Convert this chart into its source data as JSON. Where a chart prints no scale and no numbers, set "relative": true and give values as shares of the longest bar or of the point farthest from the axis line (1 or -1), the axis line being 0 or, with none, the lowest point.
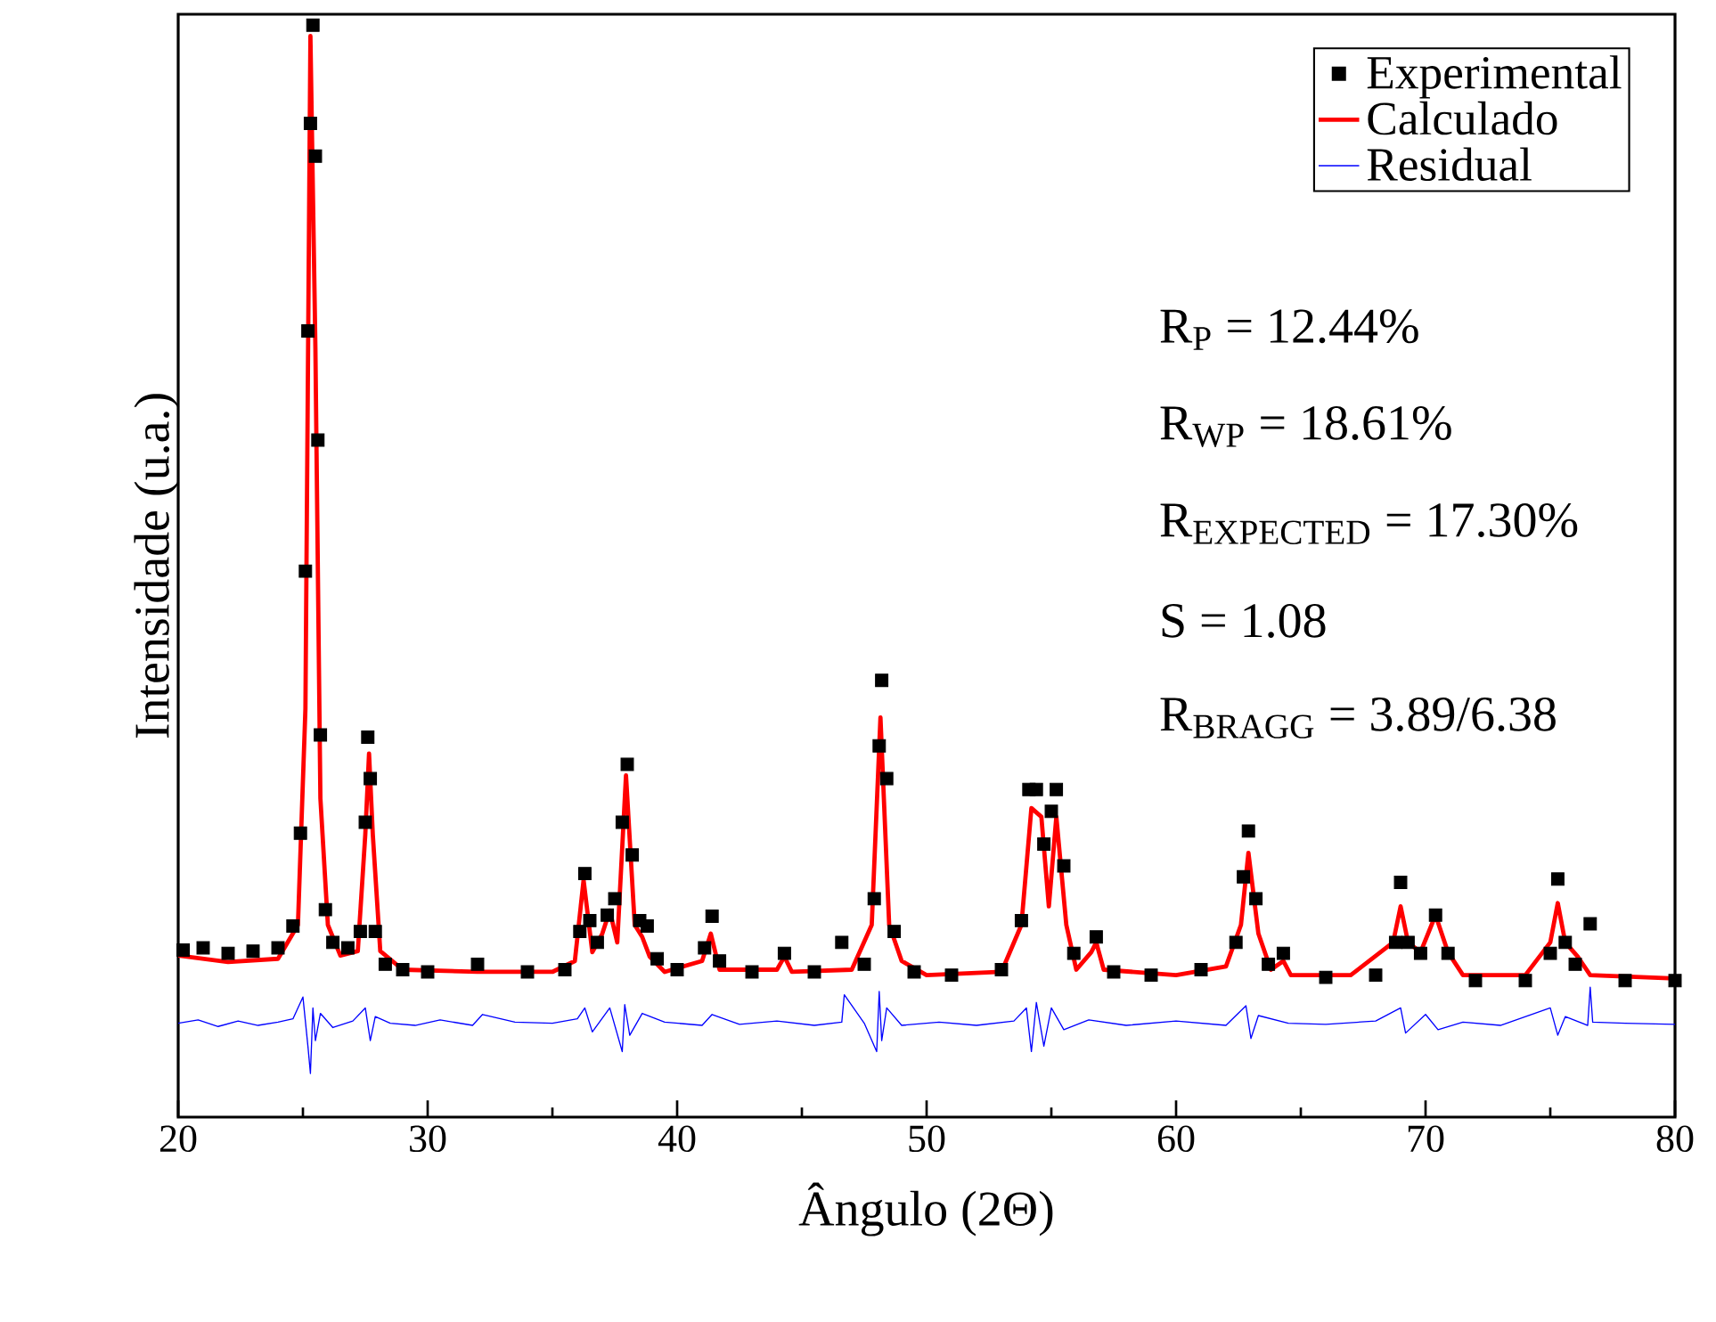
{
  "chart_data": {
    "type": "line",
    "relative": true,
    "xlabel": "Ângulo (2Θ)",
    "ylabel": "Intensidade (u.a.)",
    "xlim": [
      20,
      80
    ],
    "xticks": [
      20,
      30,
      40,
      50,
      60,
      70,
      80
    ],
    "legend": "top right",
    "annotations": [
      "R$_{P}$ = 12.44%",
      "R$_{WP}$ = 18.61%",
      "R$_{EXPECTED}$ = 17.30%",
      "S = 1.08",
      "R$_{BRAGG}$ = 3.89/6.38"
    ],
    "series": [
      {
        "name": "Experimental",
        "type": "scatter",
        "marker": "square",
        "color": "#000000",
        "x": [
          20.2,
          21,
          22,
          23,
          24,
          24.6,
          24.9,
          25.1,
          25.2,
          25.3,
          25.4,
          25.5,
          25.6,
          25.7,
          25.9,
          26.2,
          26.8,
          27.3,
          27.5,
          27.6,
          27.7,
          27.9,
          28.3,
          29,
          30,
          32,
          34,
          35.5,
          36.1,
          36.3,
          36.5,
          36.8,
          37.2,
          37.5,
          37.8,
          38.0,
          38.2,
          38.5,
          38.8,
          39.2,
          40,
          41.1,
          41.4,
          41.7,
          43,
          44.3,
          45.5,
          46.6,
          47.5,
          47.9,
          48.1,
          48.2,
          48.4,
          48.7,
          49.5,
          51,
          53,
          53.8,
          54.1,
          54.4,
          54.7,
          55.0,
          55.2,
          55.5,
          55.9,
          56.8,
          57.5,
          59,
          61,
          62.4,
          62.7,
          62.9,
          63.2,
          63.7,
          64.3,
          66,
          68,
          68.8,
          69.0,
          69.3,
          69.8,
          70.4,
          70.9,
          72,
          74,
          75.0,
          75.3,
          75.6,
          76.0,
          76.6,
          78,
          80
        ],
        "values": [
          0.153,
          0.155,
          0.15,
          0.152,
          0.155,
          0.175,
          0.26,
          0.5,
          0.72,
          0.91,
          1.0,
          0.88,
          0.62,
          0.35,
          0.19,
          0.16,
          0.155,
          0.17,
          0.27,
          0.348,
          0.31,
          0.17,
          0.14,
          0.135,
          0.133,
          0.14,
          0.133,
          0.135,
          0.17,
          0.223,
          0.18,
          0.16,
          0.185,
          0.2,
          0.27,
          0.323,
          0.24,
          0.18,
          0.175,
          0.145,
          0.135,
          0.155,
          0.184,
          0.143,
          0.133,
          0.15,
          0.133,
          0.16,
          0.14,
          0.2,
          0.34,
          0.4,
          0.31,
          0.17,
          0.133,
          0.13,
          0.135,
          0.18,
          0.3,
          0.3,
          0.25,
          0.28,
          0.3,
          0.23,
          0.15,
          0.165,
          0.133,
          0.13,
          0.135,
          0.16,
          0.22,
          0.262,
          0.2,
          0.14,
          0.15,
          0.128,
          0.13,
          0.16,
          0.215,
          0.16,
          0.15,
          0.185,
          0.15,
          0.125,
          0.125,
          0.15,
          0.218,
          0.16,
          0.14,
          0.177,
          0.125,
          0.125
        ]
      },
      {
        "name": "Calculado",
        "type": "line",
        "color": "#ff0000",
        "x": [
          20,
          22,
          24,
          24.8,
          25.1,
          25.3,
          25.5,
          25.7,
          26,
          26.5,
          27.2,
          27.5,
          27.65,
          27.8,
          28.1,
          29,
          32,
          35,
          35.9,
          36.25,
          36.6,
          37.0,
          37.3,
          37.6,
          37.95,
          38.3,
          38.6,
          38.9,
          39.5,
          41.0,
          41.35,
          41.7,
          44,
          44.3,
          44.6,
          47,
          47.8,
          48.15,
          48.5,
          49,
          50,
          53,
          53.8,
          54.2,
          54.6,
          54.9,
          55.2,
          55.6,
          56,
          56.6,
          56.8,
          57.1,
          60,
          62,
          62.6,
          62.9,
          63.3,
          63.8,
          64.3,
          64.6,
          67,
          68.7,
          69.0,
          69.3,
          69.8,
          70.4,
          70.9,
          71.5,
          74,
          75.0,
          75.3,
          75.6,
          76.1,
          76.6,
          80
        ],
        "values": [
          0.148,
          0.142,
          0.145,
          0.176,
          0.374,
          0.99,
          0.704,
          0.292,
          0.176,
          0.148,
          0.152,
          0.259,
          0.333,
          0.259,
          0.152,
          0.135,
          0.133,
          0.133,
          0.143,
          0.217,
          0.151,
          0.168,
          0.189,
          0.16,
          0.313,
          0.176,
          0.165,
          0.147,
          0.133,
          0.143,
          0.168,
          0.135,
          0.135,
          0.147,
          0.133,
          0.135,
          0.176,
          0.366,
          0.176,
          0.143,
          0.13,
          0.133,
          0.176,
          0.283,
          0.275,
          0.193,
          0.275,
          0.176,
          0.135,
          0.151,
          0.16,
          0.135,
          0.13,
          0.138,
          0.176,
          0.242,
          0.168,
          0.135,
          0.143,
          0.13,
          0.13,
          0.16,
          0.193,
          0.16,
          0.151,
          0.185,
          0.151,
          0.13,
          0.13,
          0.16,
          0.196,
          0.16,
          0.147,
          0.13,
          0.127
        ]
      },
      {
        "name": "Residual",
        "type": "line",
        "color": "#0000ff",
        "x": [
          20,
          20.8,
          21.6,
          22.4,
          23.2,
          24,
          24.6,
          25.0,
          25.2,
          25.3,
          25.4,
          25.5,
          25.7,
          26.2,
          27,
          27.5,
          27.7,
          27.9,
          28.5,
          29.5,
          30.5,
          31.8,
          32.2,
          33.5,
          35,
          36,
          36.3,
          36.6,
          37.3,
          37.8,
          37.9,
          38.1,
          38.6,
          39.5,
          41,
          41.4,
          42.5,
          44,
          45.5,
          46.6,
          46.7,
          47.5,
          48.0,
          48.1,
          48.2,
          48.4,
          49,
          50.5,
          52,
          53.5,
          54.0,
          54.2,
          54.4,
          54.7,
          55.0,
          55.5,
          56.5,
          58,
          60,
          62,
          62.8,
          63.0,
          63.3,
          64.5,
          66,
          68,
          69.0,
          69.2,
          70.0,
          70.5,
          71.5,
          73,
          75.0,
          75.3,
          75.6,
          76.5,
          76.6,
          76.7,
          78,
          80
        ],
        "values": [
          0.086,
          0.089,
          0.083,
          0.088,
          0.084,
          0.087,
          0.09,
          0.11,
          0.065,
          0.04,
          0.1,
          0.07,
          0.095,
          0.082,
          0.088,
          0.1,
          0.07,
          0.092,
          0.086,
          0.084,
          0.089,
          0.084,
          0.094,
          0.087,
          0.086,
          0.09,
          0.1,
          0.078,
          0.1,
          0.06,
          0.103,
          0.075,
          0.095,
          0.087,
          0.084,
          0.094,
          0.085,
          0.088,
          0.084,
          0.087,
          0.112,
          0.086,
          0.06,
          0.115,
          0.07,
          0.1,
          0.084,
          0.087,
          0.084,
          0.088,
          0.1,
          0.06,
          0.105,
          0.065,
          0.1,
          0.08,
          0.089,
          0.084,
          0.088,
          0.084,
          0.102,
          0.072,
          0.093,
          0.086,
          0.085,
          0.088,
          0.1,
          0.077,
          0.094,
          0.08,
          0.087,
          0.084,
          0.1,
          0.075,
          0.092,
          0.084,
          0.119,
          0.087,
          0.086,
          0.085
        ]
      }
    ]
  }
}
